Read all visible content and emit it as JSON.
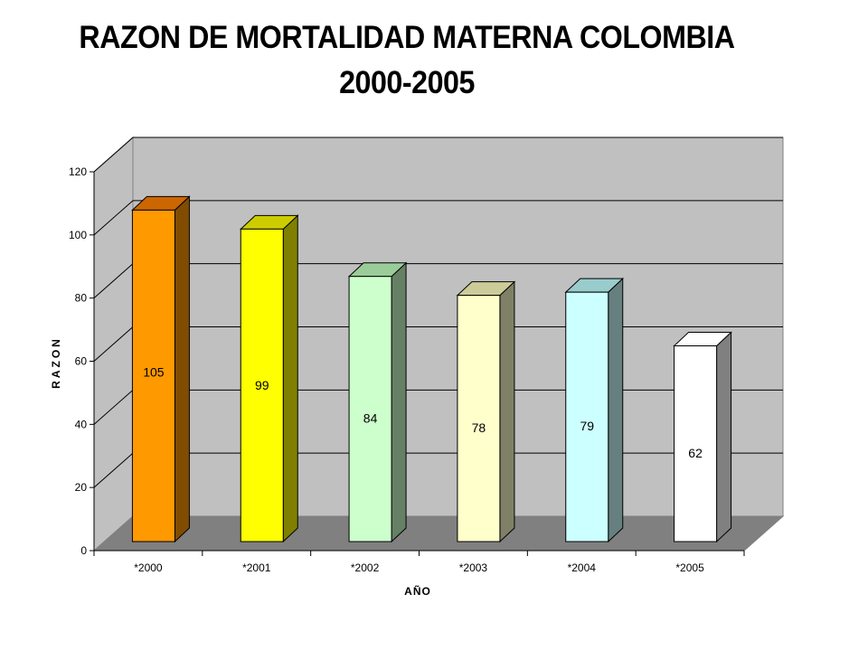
{
  "chart_data": {
    "type": "bar",
    "title": "RAZON DE MORTALIDAD MATERNA COLOMBIA",
    "subtitle": "2000-2005",
    "xlabel": "AÑO",
    "ylabel": "RAZON",
    "categories": [
      "*2000",
      "*2001",
      "*2002",
      "*2003",
      "*2004",
      "*2005"
    ],
    "values": [
      105,
      99,
      84,
      78,
      79,
      62
    ],
    "data_labels": [
      "105",
      "99",
      "84",
      "78",
      "79",
      "62"
    ],
    "yticks": [
      "0",
      "20",
      "40",
      "60",
      "80",
      "100",
      "120"
    ],
    "ylim": [
      0,
      120
    ],
    "grid": true,
    "bar_colors": [
      "#FF9900",
      "#FFFF00",
      "#CCFFCC",
      "#FFFFCC",
      "#CCFFFF",
      "#FFFFFF"
    ],
    "bar_side_colors": [
      "#804C00",
      "#808000",
      "#668066",
      "#808066",
      "#668080",
      "#808080"
    ],
    "bar_top_colors": [
      "#CC6600",
      "#CCCC00",
      "#99CC99",
      "#CCCC99",
      "#99CCCC",
      "#FFFFFF"
    ],
    "wall_color": "#C0C0C0",
    "floor_color": "#808080"
  }
}
